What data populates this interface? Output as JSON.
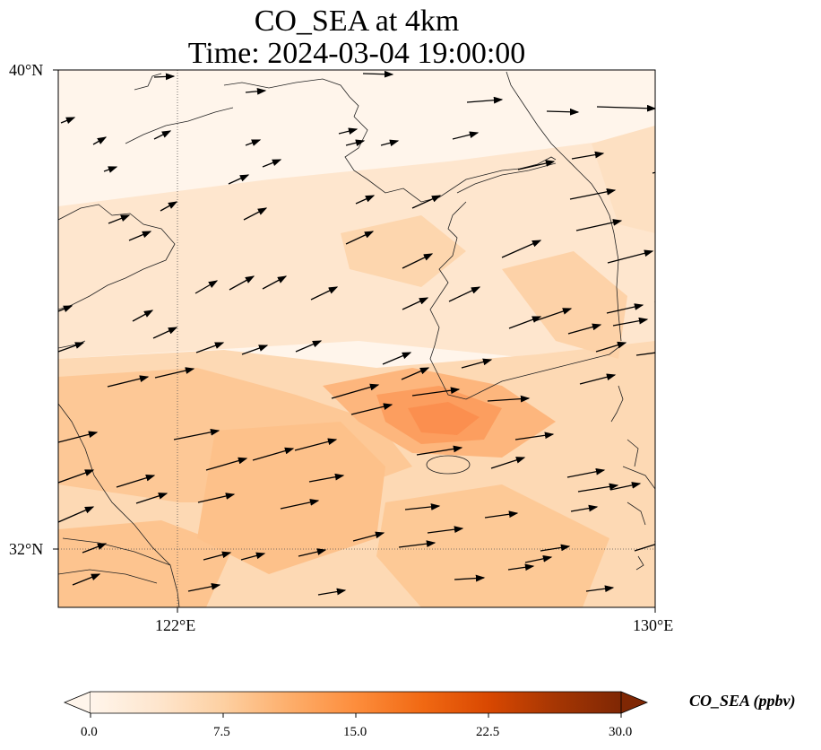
{
  "title": {
    "line1": "CO_SEA at 4km",
    "line2": "Time: 2024-03-04 19:00:00"
  },
  "map": {
    "lat_labels": [
      "40°N",
      "32°N"
    ],
    "lon_labels": [
      "122°E",
      "130°E"
    ],
    "gridlines": "dotted"
  },
  "colorbar": {
    "label": "CO_SEA (ppbv)",
    "ticks": [
      "0.0",
      "7.5",
      "15.0",
      "22.5",
      "30.0"
    ],
    "colormap": [
      "#fff5eb",
      "#fee6ce",
      "#fdd0a2",
      "#fdae6b",
      "#fd8d3c",
      "#f16913",
      "#d94801",
      "#a63603",
      "#7f2704"
    ],
    "extend": "both"
  }
}
